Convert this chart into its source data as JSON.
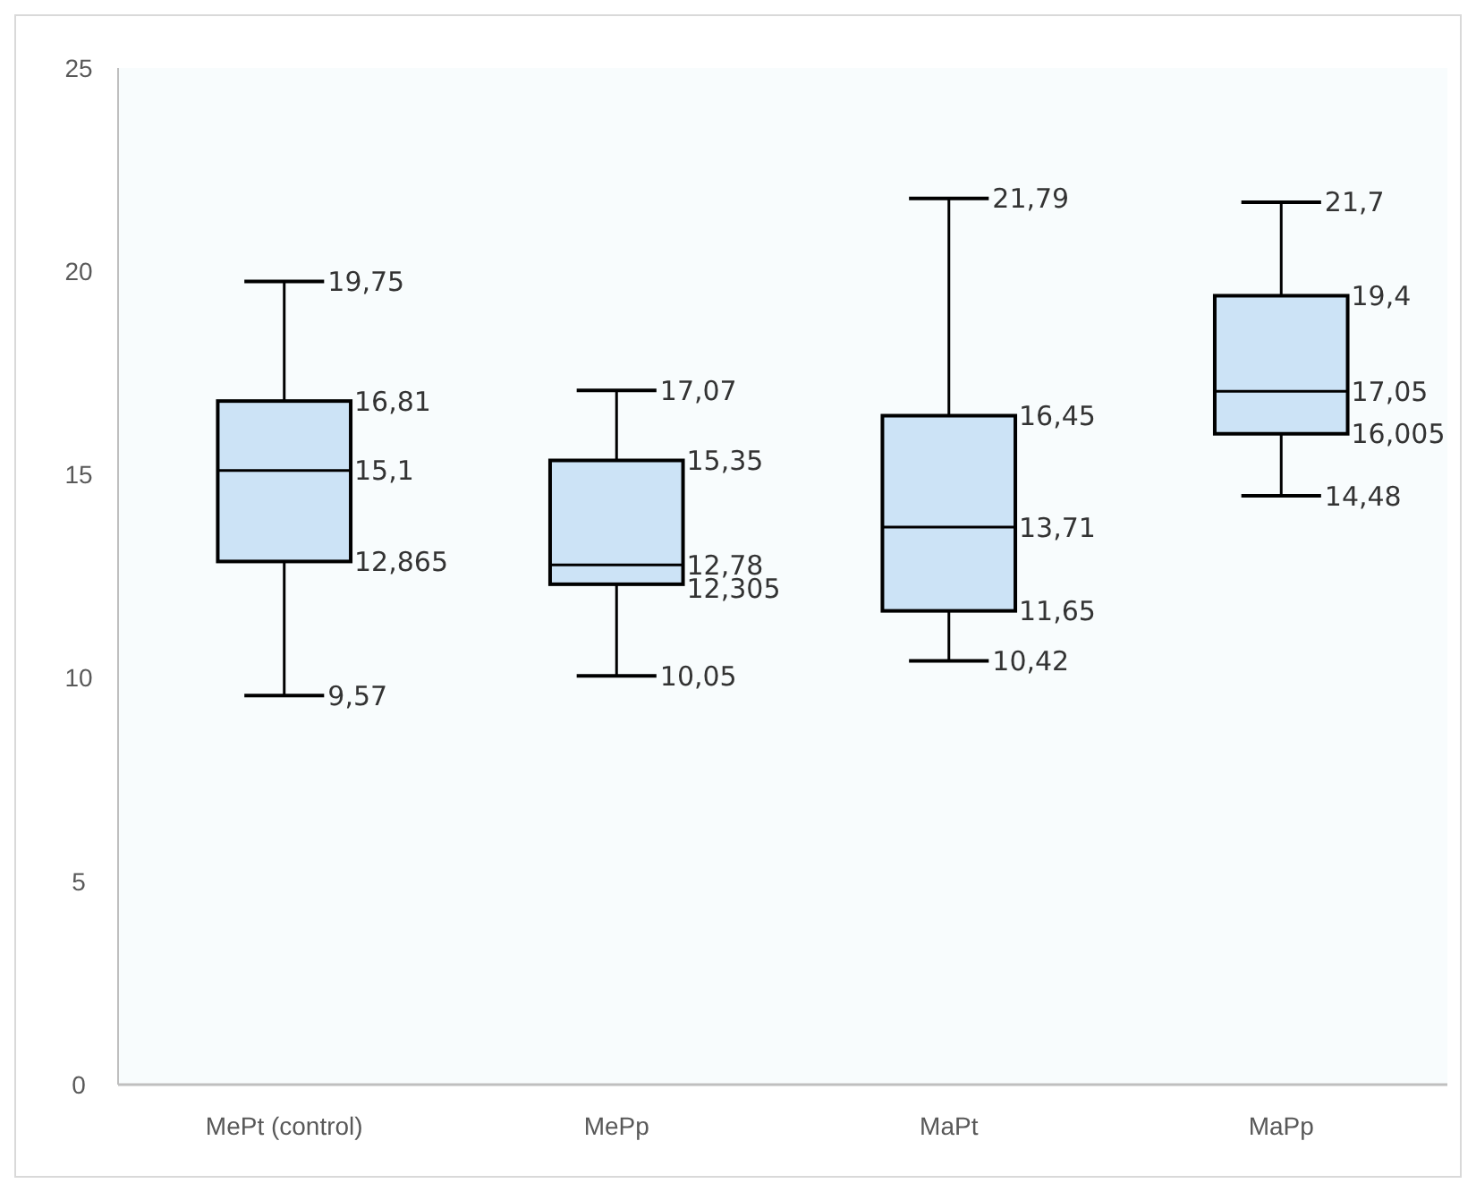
{
  "chart_data": {
    "type": "box",
    "categories": [
      "MePt (control)",
      "MePp",
      "MaPt",
      "MaPp"
    ],
    "boxes": [
      {
        "low": 9.57,
        "q1": 12.865,
        "median": 15.1,
        "q3": 16.81,
        "high": 19.75
      },
      {
        "low": 10.05,
        "q1": 12.305,
        "median": 12.78,
        "q3": 15.35,
        "high": 17.07
      },
      {
        "low": 10.42,
        "q1": 11.65,
        "median": 13.71,
        "q3": 16.45,
        "high": 21.79
      },
      {
        "low": 14.48,
        "q1": 16.005,
        "median": 17.05,
        "q3": 19.4,
        "high": 21.7
      }
    ],
    "color": "#cce3f6",
    "ylim": [
      0,
      25
    ],
    "yticks": [
      0,
      5,
      10,
      15,
      20,
      25
    ],
    "grid": false,
    "value_labels": [
      [
        "19,75",
        "16,81",
        "15,1",
        "12,865",
        "9,57"
      ],
      [
        "17,07",
        "15,35",
        "12,78",
        "12,305",
        "10,05"
      ],
      [
        "21,79",
        "16,45",
        "13,71",
        "11,65",
        "10,42"
      ],
      [
        "21,7",
        "19,4",
        "17,05",
        "16,005",
        "14,48"
      ]
    ]
  }
}
